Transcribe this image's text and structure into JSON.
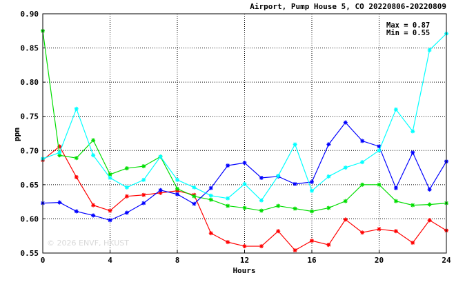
{
  "chart_data": {
    "type": "line",
    "title": "Airport, Pump House 5, CO 20220806-20220809",
    "xlabel": "Hours",
    "ylabel": "ppm",
    "xlim": [
      0,
      24
    ],
    "ylim": [
      0.55,
      0.9
    ],
    "xticks": [
      0,
      4,
      8,
      12,
      16,
      20,
      24
    ],
    "yticks": [
      0.55,
      0.6,
      0.65,
      0.7,
      0.75,
      0.8,
      0.85,
      0.9
    ],
    "grid": true,
    "x": [
      0,
      1,
      2,
      3,
      4,
      5,
      6,
      7,
      8,
      9,
      10,
      11,
      12,
      13,
      14,
      15,
      16,
      17,
      18,
      19,
      20,
      21,
      22,
      23,
      24
    ],
    "annotations": {
      "max": "Max = 0.87",
      "min": "Min = 0.55"
    },
    "watermark": "© 2026 ENVF, HKUST",
    "series": [
      {
        "color": "#ff0000",
        "values": [
          0.686,
          0.706,
          0.661,
          0.62,
          0.612,
          0.633,
          0.635,
          0.638,
          0.641,
          0.635,
          0.579,
          0.566,
          0.56,
          0.56,
          0.582,
          0.554,
          0.568,
          0.562,
          0.599,
          0.58,
          0.585,
          0.582,
          0.565,
          0.598,
          0.583
        ]
      },
      {
        "color": "#00dd00",
        "values": [
          0.875,
          0.693,
          0.689,
          0.715,
          0.665,
          0.674,
          0.677,
          0.691,
          0.644,
          0.633,
          0.628,
          0.619,
          0.616,
          0.612,
          0.619,
          0.615,
          0.611,
          0.616,
          0.626,
          0.65,
          0.65,
          0.626,
          0.62,
          0.621,
          0.623
        ]
      },
      {
        "color": "#0000ff",
        "values": [
          0.623,
          0.624,
          0.611,
          0.605,
          0.598,
          0.609,
          0.623,
          0.642,
          0.636,
          0.622,
          0.645,
          0.678,
          0.682,
          0.66,
          0.662,
          0.651,
          0.654,
          0.709,
          0.741,
          0.714,
          0.706,
          0.645,
          0.697,
          0.643,
          0.684
        ]
      },
      {
        "color": "#00ffff",
        "values": [
          0.688,
          0.697,
          0.761,
          0.693,
          0.66,
          0.646,
          0.657,
          0.691,
          0.657,
          0.646,
          0.634,
          0.63,
          0.651,
          0.627,
          0.663,
          0.709,
          0.641,
          0.662,
          0.675,
          0.683,
          0.7,
          0.76,
          0.728,
          0.847,
          0.871
        ]
      }
    ]
  }
}
